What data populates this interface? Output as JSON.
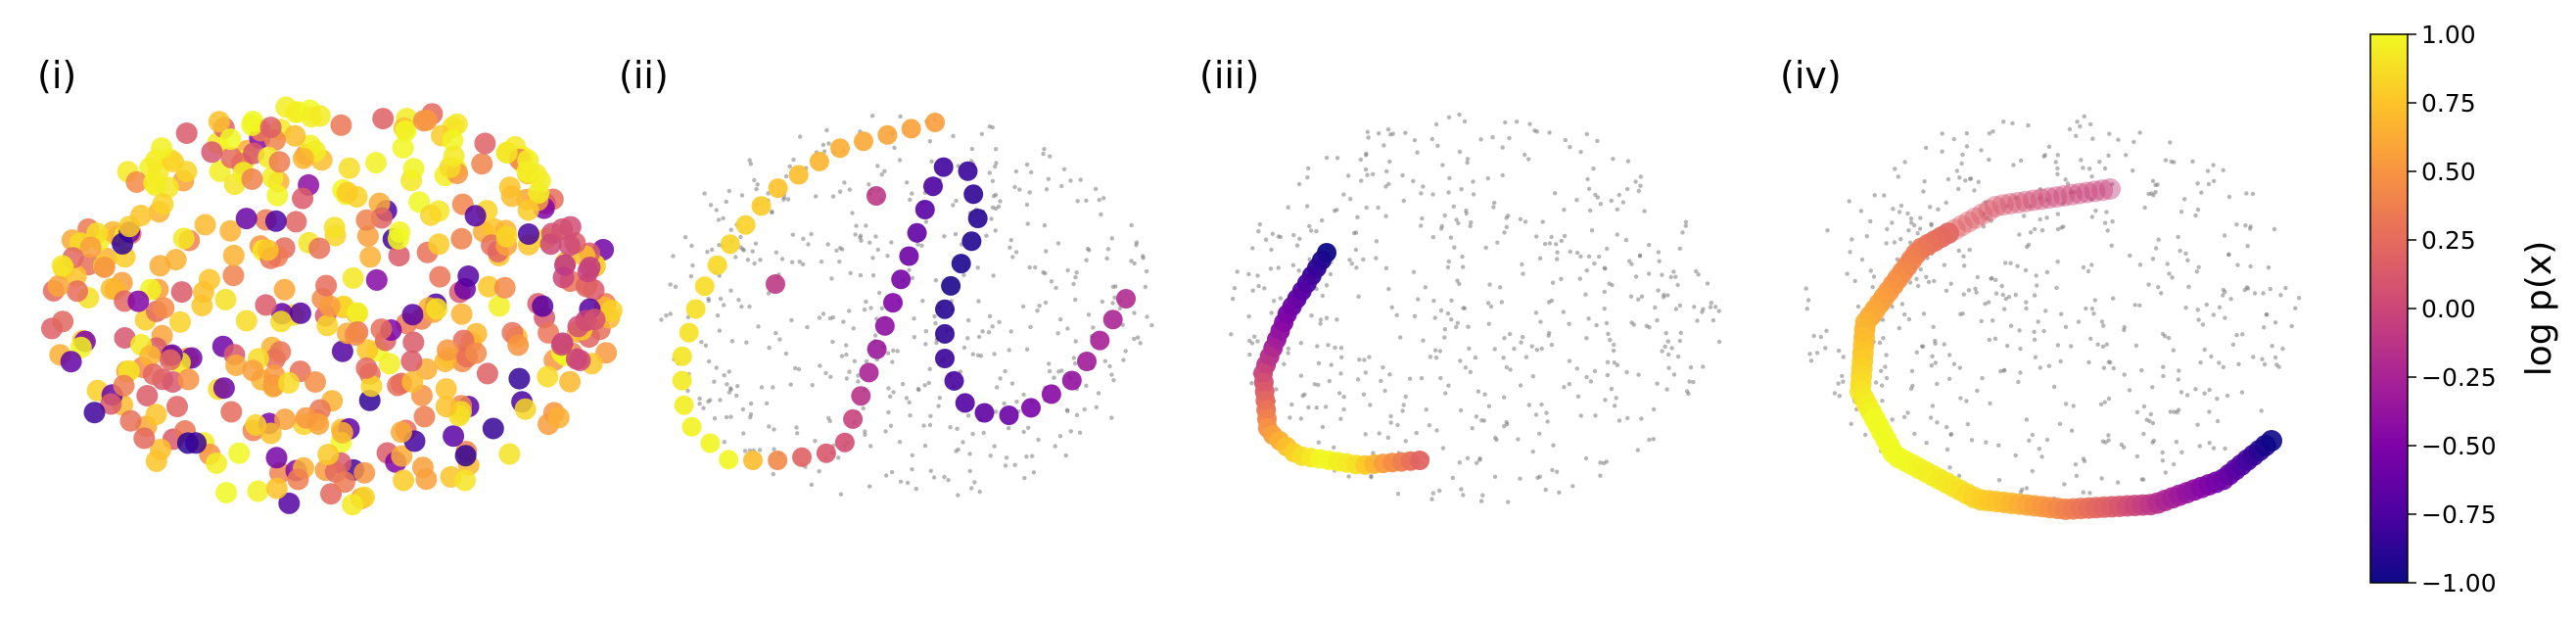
{
  "figure": {
    "panels": [
      {
        "label": "(i)"
      },
      {
        "label": "(ii)"
      },
      {
        "label": "(iii)"
      },
      {
        "label": "(iv)"
      }
    ],
    "colorbar": {
      "label": "log p(x)",
      "ticks": [
        "1.00",
        "0.75",
        "0.50",
        "0.25",
        "0.00",
        "−0.25",
        "−0.50",
        "−0.75",
        "−1.00"
      ],
      "colormap": "plasma",
      "range": [
        -1.0,
        1.0
      ]
    }
  },
  "chart_data": [
    {
      "type": "scatter",
      "panel": "(i)",
      "description_of_points": "dense cloud of colored points filling an ellipse",
      "color_value_range": [
        -1.0,
        1.0
      ],
      "background_points": false
    },
    {
      "type": "scatter",
      "panel": "(ii)",
      "trajectory": [
        0.55,
        0.6,
        0.7,
        0.8,
        0.85,
        0.9,
        0.95,
        1.0,
        0.2,
        0.0,
        -0.3,
        -0.5,
        -0.65,
        -0.8,
        -0.9,
        -0.95,
        -0.85,
        -0.7,
        -0.5,
        -0.3,
        -0.2
      ],
      "background_points": true
    },
    {
      "type": "scatter",
      "panel": "(iii)",
      "trajectory": [
        -1.0,
        -0.8,
        -0.6,
        -0.4,
        -0.1,
        0.2,
        0.5,
        0.8,
        1.0,
        0.9,
        0.5,
        0.2
      ],
      "background_points": true
    },
    {
      "type": "scatter",
      "panel": "(iv)",
      "trajectory": [
        -0.05,
        0.0,
        0.1,
        0.2,
        0.4,
        0.6,
        0.8,
        1.0,
        1.0,
        0.9,
        0.7,
        0.4,
        0.1,
        -0.3,
        -0.6,
        -1.0
      ],
      "background_points": true
    }
  ]
}
